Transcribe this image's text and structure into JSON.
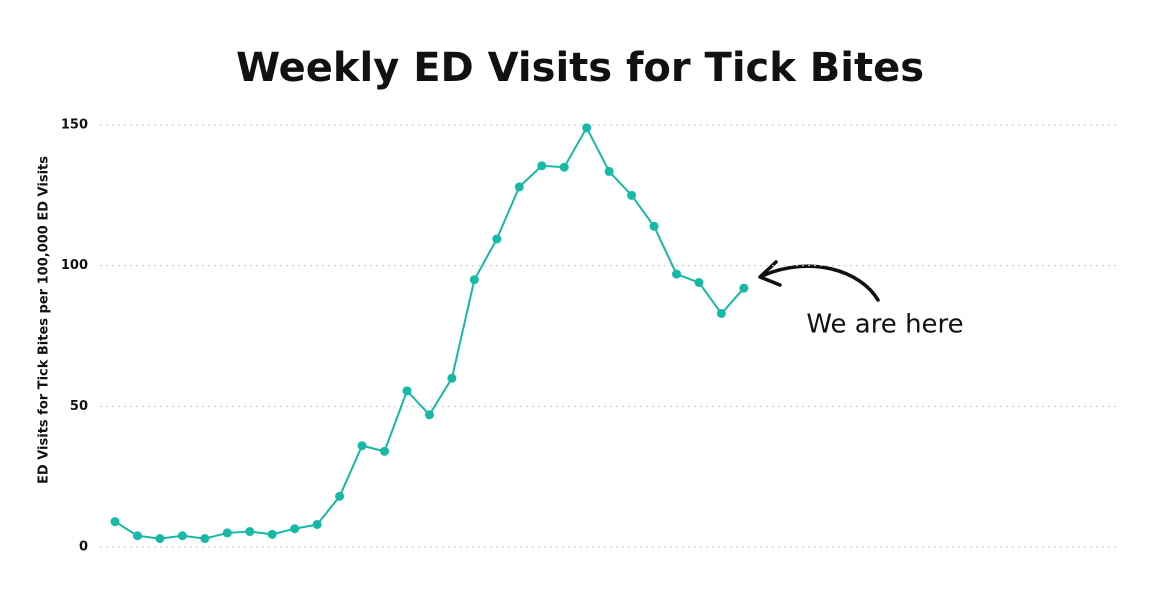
{
  "chart_data": {
    "type": "line",
    "title": "Weekly ED Visits for Tick Bites",
    "y_label": "ED Visits for Tick Bites per 100,000 ED Visits",
    "annotation": "We are here",
    "color": "#17b8a6",
    "values": [
      9,
      4,
      3,
      4,
      3,
      5,
      5.5,
      4.5,
      6.5,
      8,
      18,
      36,
      34,
      55.5,
      47,
      60,
      95,
      109.5,
      128,
      135.5,
      135,
      149,
      133.5,
      125,
      114,
      97,
      94,
      83,
      92
    ],
    "ylim": [
      0,
      150
    ],
    "yticks": [
      0,
      50,
      100,
      150
    ],
    "grid": true
  }
}
